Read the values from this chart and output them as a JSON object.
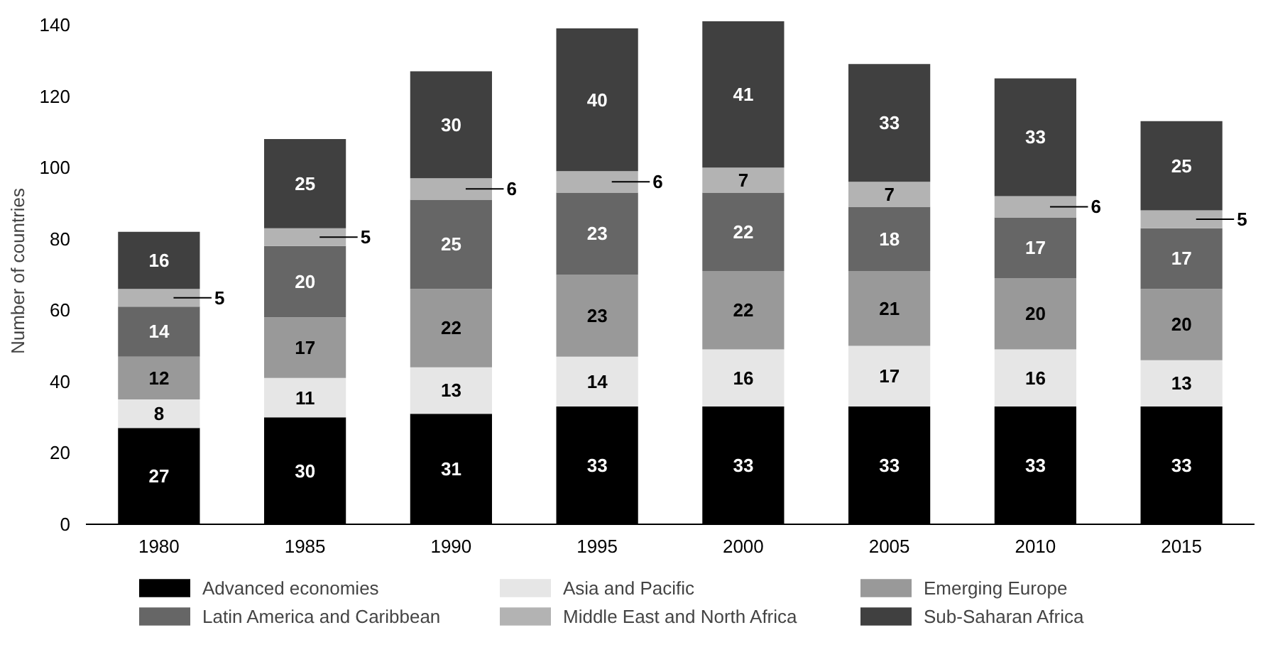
{
  "chart_data": {
    "type": "bar",
    "stacked": true,
    "ylabel": "Number of countries",
    "categories": [
      "1980",
      "1985",
      "1990",
      "1995",
      "2000",
      "2005",
      "2010",
      "2015"
    ],
    "ylim": [
      0,
      142
    ],
    "yticks": [
      0,
      20,
      40,
      60,
      80,
      100,
      120,
      140
    ],
    "grid": false,
    "legend": "bottom",
    "data_labels": true,
    "series": [
      {
        "name": "Advanced economies",
        "color": "#000000",
        "values": [
          27,
          30,
          31,
          33,
          33,
          33,
          33,
          33
        ]
      },
      {
        "name": "Asia and Pacific",
        "color": "#e6e6e6",
        "values": [
          8,
          11,
          13,
          14,
          16,
          17,
          16,
          13
        ]
      },
      {
        "name": "Emerging Europe",
        "color": "#999999",
        "values": [
          12,
          17,
          22,
          23,
          22,
          21,
          20,
          20
        ]
      },
      {
        "name": "Latin America and Caribbean",
        "color": "#666666",
        "values": [
          14,
          20,
          25,
          23,
          22,
          18,
          17,
          17
        ]
      },
      {
        "name": "Middle East and North Africa",
        "color": "#b3b3b3",
        "values": [
          5,
          5,
          6,
          6,
          7,
          7,
          6,
          5
        ]
      },
      {
        "name": "Sub-Saharan Africa",
        "color": "#404040",
        "values": [
          16,
          25,
          30,
          40,
          41,
          33,
          33,
          25
        ]
      }
    ]
  }
}
